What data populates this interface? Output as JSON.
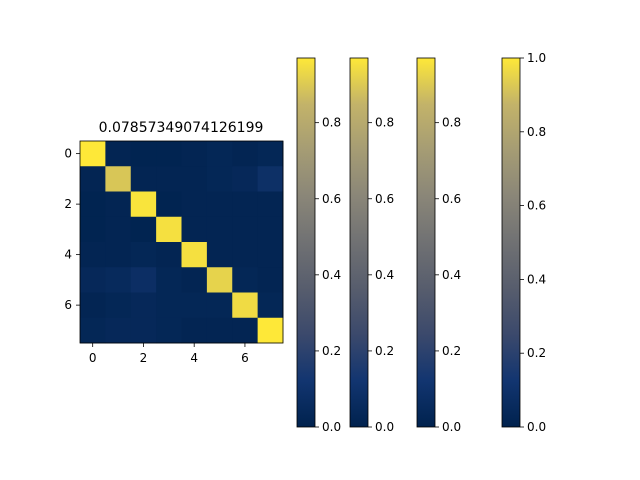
{
  "chart_data": [
    {
      "type": "heatmap",
      "title": "0.07857349074126199",
      "colormap": "cividis",
      "value_range": [
        0,
        1
      ],
      "x_ticks": [
        0,
        2,
        4,
        6
      ],
      "y_ticks": [
        0,
        2,
        4,
        6
      ],
      "rows": 8,
      "cols": 8,
      "values": [
        [
          1.0,
          0.02,
          0.01,
          0.01,
          0.02,
          0.03,
          0.02,
          0.03
        ],
        [
          0.02,
          0.92,
          0.02,
          0.02,
          0.02,
          0.03,
          0.04,
          0.09
        ],
        [
          0.01,
          0.02,
          0.99,
          0.01,
          0.02,
          0.02,
          0.02,
          0.02
        ],
        [
          0.01,
          0.02,
          0.01,
          0.98,
          0.02,
          0.02,
          0.02,
          0.02
        ],
        [
          0.02,
          0.02,
          0.03,
          0.02,
          0.98,
          0.02,
          0.02,
          0.02
        ],
        [
          0.04,
          0.05,
          0.08,
          0.03,
          0.02,
          0.95,
          0.03,
          0.02
        ],
        [
          0.02,
          0.03,
          0.04,
          0.03,
          0.03,
          0.03,
          0.97,
          0.03
        ],
        [
          0.03,
          0.04,
          0.04,
          0.03,
          0.02,
          0.02,
          0.02,
          1.0
        ]
      ]
    },
    {
      "type": "colorbar",
      "colormap": "cividis",
      "range": [
        0,
        0.97
      ],
      "tick_labels": [
        "0.0",
        "0.2",
        "0.4",
        "0.6",
        "0.8"
      ]
    },
    {
      "type": "colorbar",
      "colormap": "cividis",
      "range": [
        0,
        0.97
      ],
      "tick_labels": [
        "0.0",
        "0.2",
        "0.4",
        "0.6",
        "0.8"
      ]
    },
    {
      "type": "colorbar",
      "colormap": "cividis",
      "range": [
        0,
        0.97
      ],
      "tick_labels": [
        "0.0",
        "0.2",
        "0.4",
        "0.6",
        "0.8"
      ]
    },
    {
      "type": "colorbar",
      "colormap": "cividis",
      "range": [
        0,
        1.0
      ],
      "tick_labels": [
        "0.0",
        "0.2",
        "0.4",
        "0.6",
        "0.8",
        "1.0"
      ]
    }
  ]
}
